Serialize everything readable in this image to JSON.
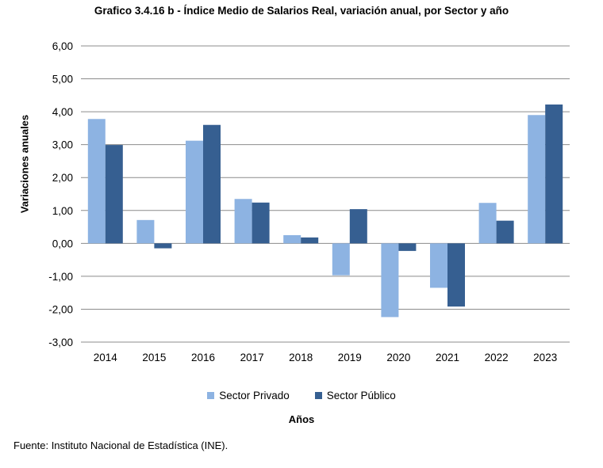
{
  "chart_data": {
    "type": "bar",
    "title": "Grafico 3.4.16 b - Índice Medio de Salarios Real, variación anual, por Sector y año",
    "xlabel": "Años",
    "ylabel": "Variaciones anuales",
    "ylim": [
      -3,
      6
    ],
    "ytick_labels": [
      "6,00",
      "5,00",
      "4,00",
      "3,00",
      "2,00",
      "1,00",
      "0,00",
      "-1,00",
      "-2,00",
      "-3,00"
    ],
    "categories": [
      "2014",
      "2015",
      "2016",
      "2017",
      "2018",
      "2019",
      "2020",
      "2021",
      "2022",
      "2023"
    ],
    "series": [
      {
        "name": "Sector Privado",
        "color": "#8db3e2",
        "values": [
          3.78,
          0.71,
          3.12,
          1.35,
          0.25,
          -0.97,
          -2.24,
          -1.35,
          1.23,
          3.9
        ]
      },
      {
        "name": "Sector Público",
        "color": "#365f91",
        "values": [
          2.99,
          -0.15,
          3.6,
          1.24,
          0.18,
          1.04,
          -0.23,
          -1.92,
          0.69,
          4.22
        ]
      }
    ],
    "grid": true,
    "legend_position": "bottom"
  },
  "source": "Fuente: Instituto Nacional de Estadística (INE)."
}
